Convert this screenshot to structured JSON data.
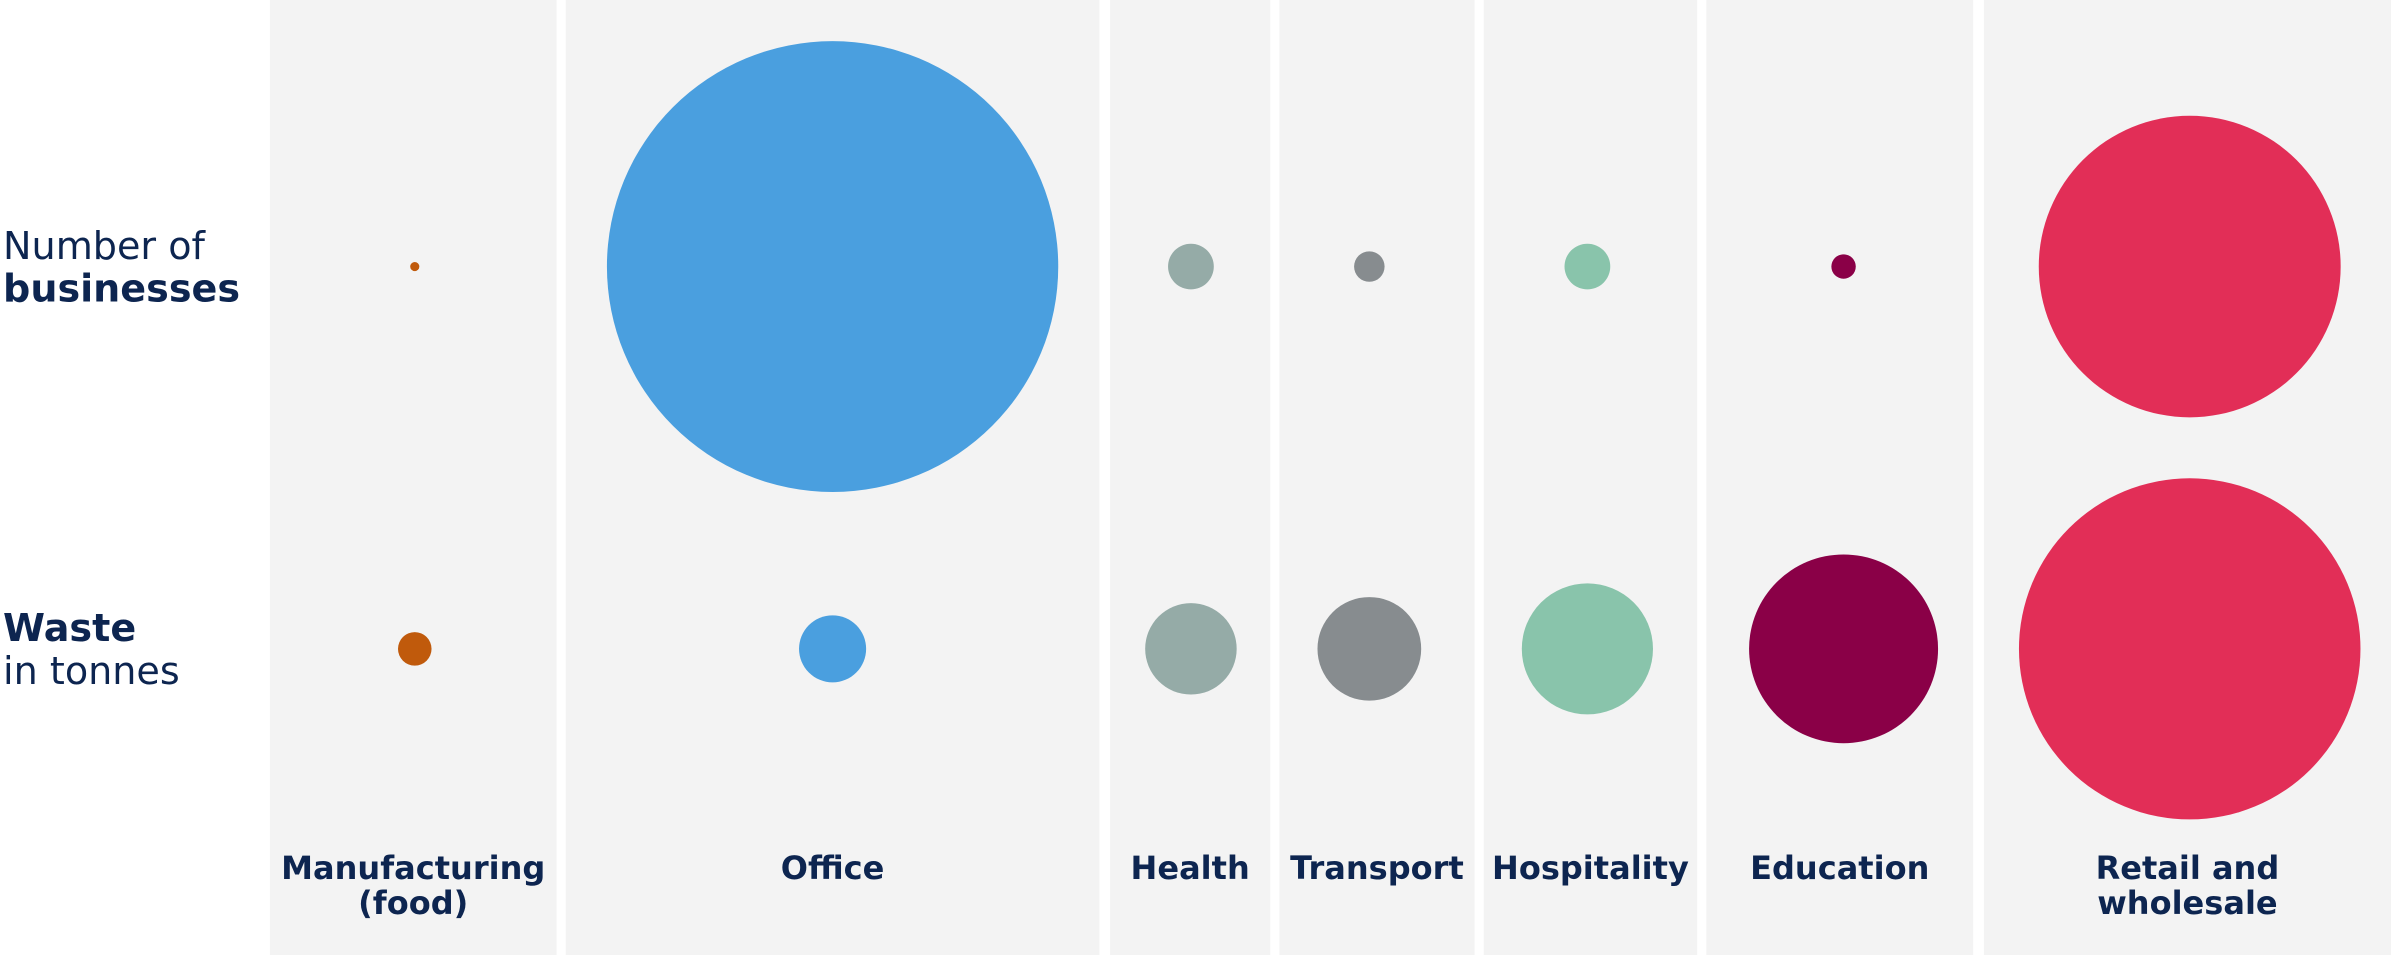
{
  "chart_data": {
    "type": "bubble",
    "categories": [
      [
        "Manufacturing",
        "(food)"
      ],
      [
        "Office"
      ],
      [
        "Health"
      ],
      [
        "Transport"
      ],
      [
        "Hospitality"
      ],
      [
        "Education"
      ],
      [
        "Retail and",
        "wholesale"
      ]
    ],
    "colors": [
      "#c05a0c",
      "#4a9fdf",
      "#95aba7",
      "#878c8f",
      "#89c4ab",
      "#8a0047",
      "#e22e57"
    ],
    "series": [
      {
        "name": [
          "Number of",
          "businesses"
        ],
        "values": [
          0.09,
          219,
          2.25,
          1,
          2.25,
          0.64,
          98
        ]
      },
      {
        "name": [
          "Waste",
          "in tonnes"
        ],
        "values": [
          1.21,
          4.84,
          9,
          11.56,
          18.5,
          38.4,
          125.4
        ]
      }
    ]
  }
}
